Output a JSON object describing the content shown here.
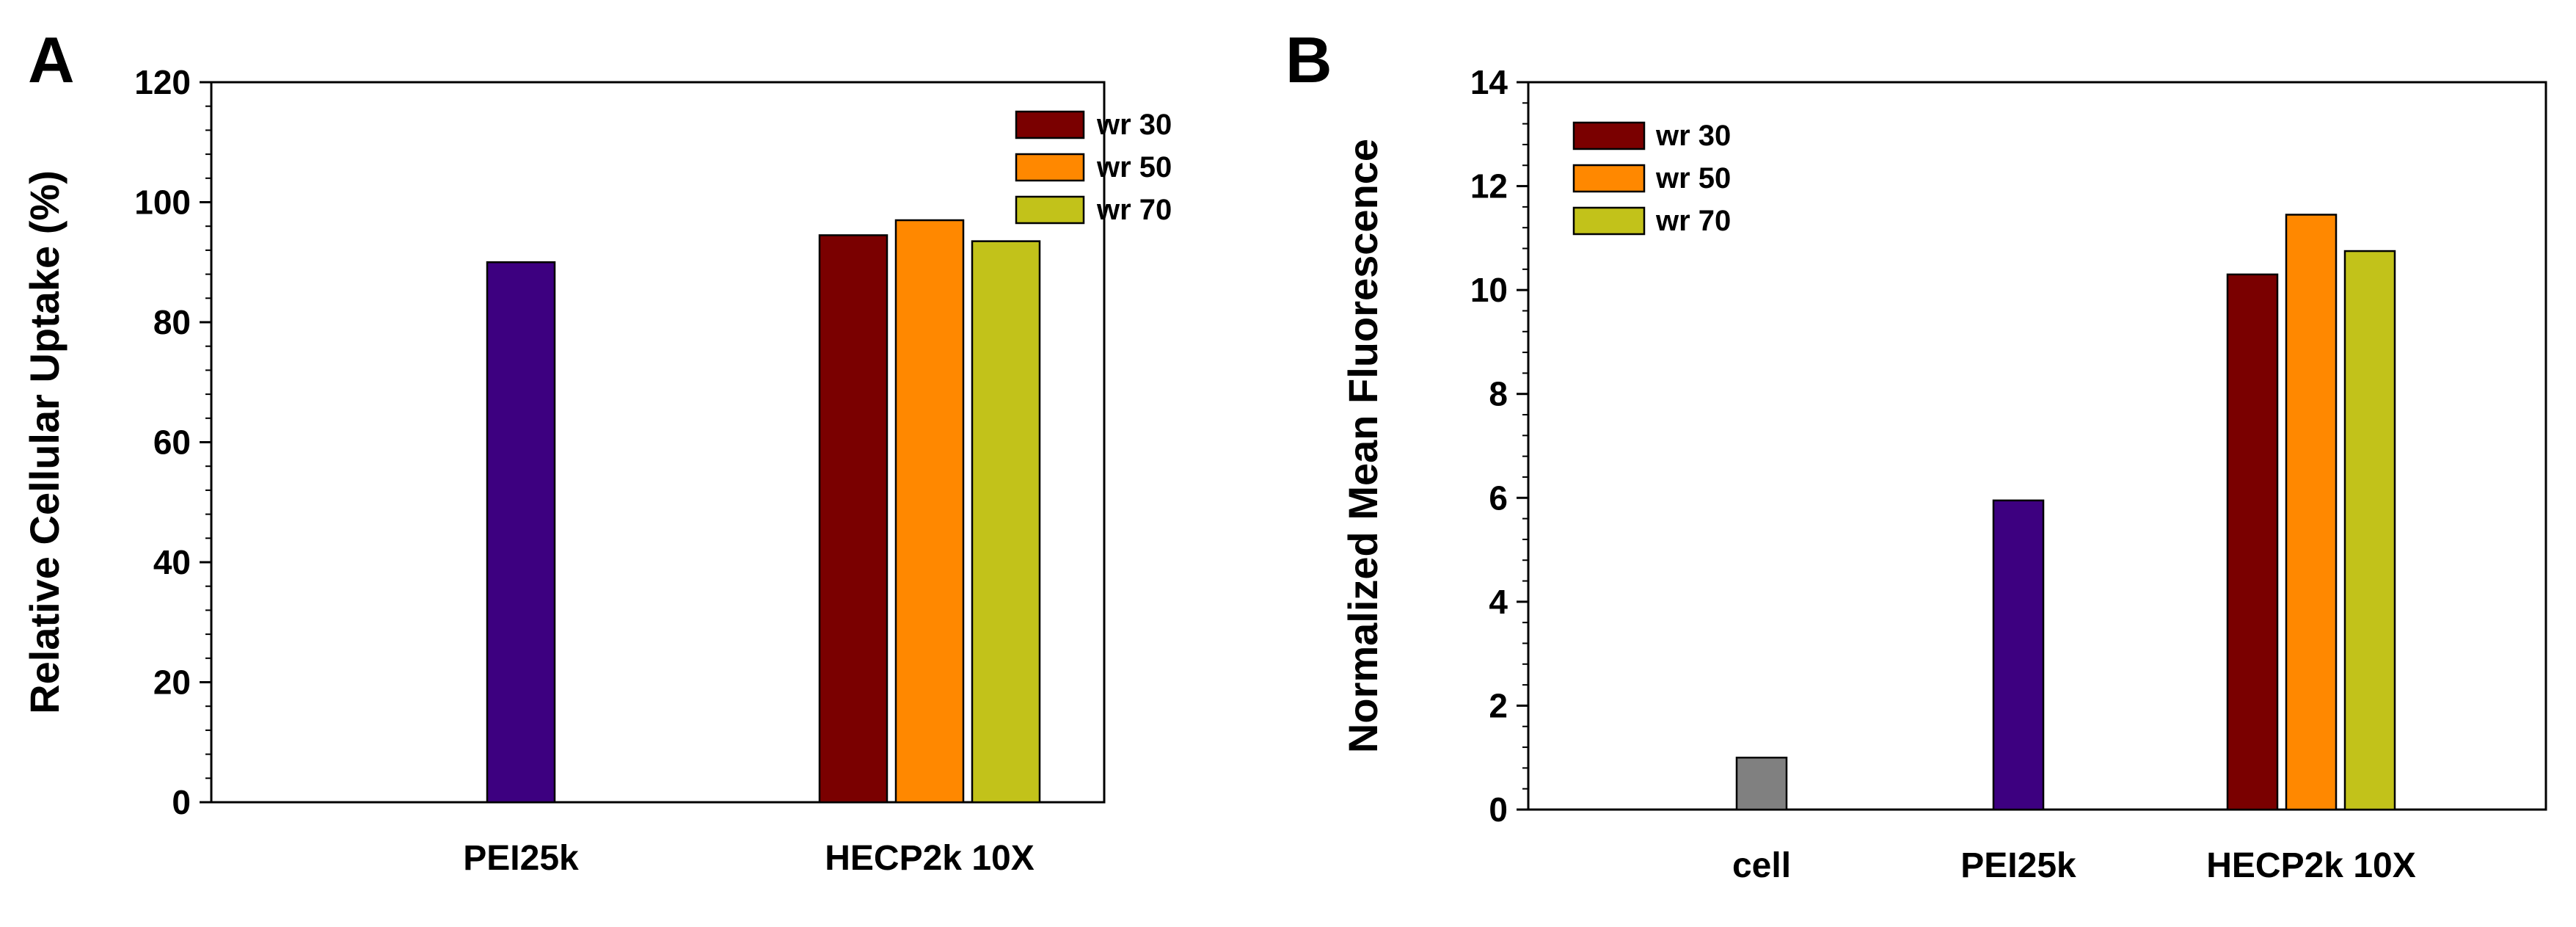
{
  "chart_data": [
    {
      "panel": "A",
      "type": "bar",
      "title": "",
      "xlabel": "",
      "ylabel": "Relative Cellular Uptake (%)",
      "ylim": [
        0,
        120
      ],
      "yticks": [
        0,
        20,
        40,
        60,
        80,
        100,
        120
      ],
      "minor_ticks": true,
      "grid": false,
      "legend_position": "top-right",
      "groups": [
        {
          "label": "PEI25k",
          "bars": [
            {
              "series": "PEI25k",
              "value": 90
            }
          ]
        },
        {
          "label": "HECP2k 10X",
          "bars": [
            {
              "series": "wr 30",
              "value": 94.5
            },
            {
              "series": "wr 50",
              "value": 97
            },
            {
              "series": "wr 70",
              "value": 93.5
            }
          ]
        }
      ],
      "legend": [
        {
          "label": "wr 30",
          "color": "#7a0000"
        },
        {
          "label": "wr 50",
          "color": "#ff8800"
        },
        {
          "label": "wr 70",
          "color": "#c2c21a"
        }
      ],
      "colors": {
        "PEI25k": "#3d0080",
        "wr 30": "#7a0000",
        "wr 50": "#ff8800",
        "wr 70": "#c2c21a"
      }
    },
    {
      "panel": "B",
      "type": "bar",
      "title": "",
      "xlabel": "",
      "ylabel": "Normalized Mean Fluorescence",
      "ylim": [
        0,
        14
      ],
      "yticks": [
        0,
        2,
        4,
        6,
        8,
        10,
        12,
        14
      ],
      "minor_ticks": true,
      "grid": false,
      "legend_position": "top-left",
      "groups": [
        {
          "label": "cell",
          "bars": [
            {
              "series": "cell",
              "value": 1
            }
          ]
        },
        {
          "label": "PEI25k",
          "bars": [
            {
              "series": "PEI25k",
              "value": 5.95
            }
          ]
        },
        {
          "label": "HECP2k 10X",
          "bars": [
            {
              "series": "wr 30",
              "value": 10.3
            },
            {
              "series": "wr 50",
              "value": 11.45
            },
            {
              "series": "wr 70",
              "value": 10.75
            }
          ]
        }
      ],
      "legend": [
        {
          "label": "wr 30",
          "color": "#7a0000"
        },
        {
          "label": "wr 50",
          "color": "#ff8800"
        },
        {
          "label": "wr 70",
          "color": "#c2c21a"
        }
      ],
      "colors": {
        "cell": "#808080",
        "PEI25k": "#3d0080",
        "wr 30": "#7a0000",
        "wr 50": "#ff8800",
        "wr 70": "#c2c21a"
      }
    }
  ]
}
